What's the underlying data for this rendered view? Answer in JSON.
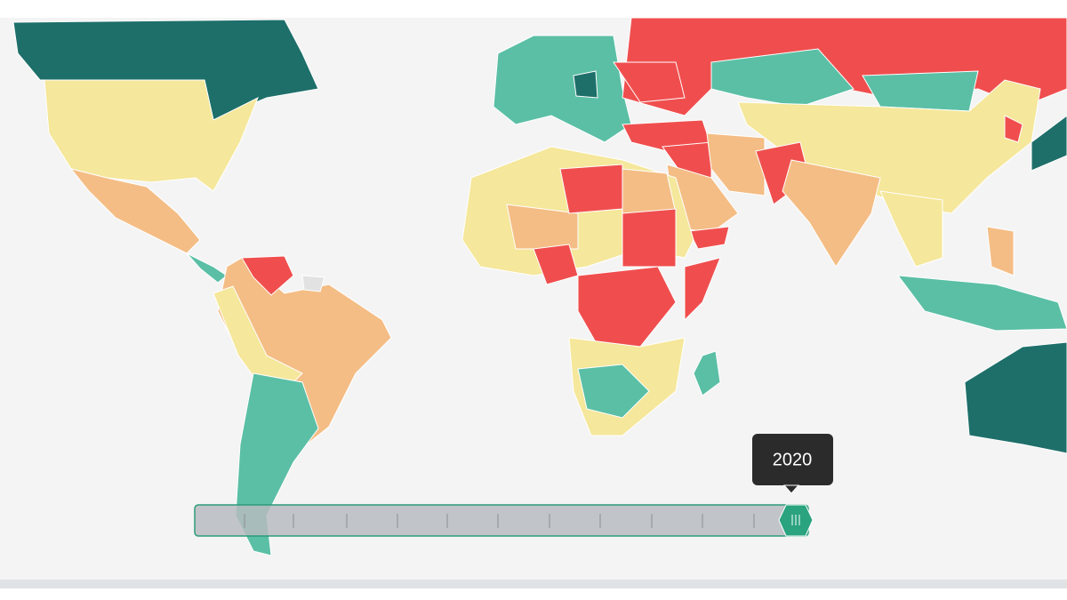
{
  "slider": {
    "tooltip": "2020"
  }
}
